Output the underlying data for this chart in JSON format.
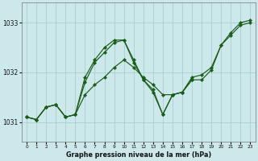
{
  "title": "Graphe pression niveau de la mer (hPa)",
  "bg_color": "#cce8ea",
  "grid_color": "#aacfcf",
  "line_color": "#1a5c1a",
  "ylim": [
    1030.6,
    1033.4
  ],
  "yticks": [
    1031,
    1032,
    1033
  ],
  "xlim": [
    -0.5,
    23.5
  ],
  "xticks": [
    0,
    1,
    2,
    3,
    4,
    5,
    6,
    7,
    8,
    9,
    10,
    11,
    12,
    13,
    14,
    15,
    16,
    17,
    18,
    19,
    20,
    21,
    22,
    23
  ],
  "series": [
    {
      "x": [
        0,
        1,
        2,
        3,
        4,
        5,
        6,
        7,
        8,
        9,
        10,
        11,
        12,
        13,
        14,
        15,
        16,
        17,
        18,
        19,
        20,
        21,
        22,
        23
      ],
      "y": [
        1031.1,
        1031.05,
        1031.3,
        1031.35,
        1031.1,
        1031.15,
        1031.55,
        1031.75,
        1031.9,
        1032.1,
        1032.25,
        1032.1,
        1031.9,
        1031.75,
        1031.55,
        1031.55,
        1031.6,
        1031.9,
        1031.95,
        1032.1,
        1032.55,
        1032.75,
        1032.95,
        1033.0
      ]
    },
    {
      "x": [
        0,
        1,
        2,
        3,
        4,
        5,
        6,
        7,
        8,
        9,
        10,
        11,
        12,
        13,
        14,
        15,
        16,
        17
      ],
      "y": [
        1031.1,
        1031.05,
        1031.3,
        1031.35,
        1031.1,
        1031.15,
        1031.8,
        1032.2,
        1032.4,
        1032.6,
        1032.65,
        1032.25,
        1031.85,
        1031.65,
        1031.15,
        1031.55,
        1031.6,
        1031.85
      ]
    },
    {
      "x": [
        0,
        1,
        2,
        3,
        4,
        5,
        6,
        7,
        8,
        9,
        10,
        11,
        12,
        13,
        14,
        15,
        16,
        17,
        18,
        19,
        20,
        21,
        22,
        23
      ],
      "y": [
        1031.1,
        1031.05,
        1031.3,
        1031.35,
        1031.1,
        1031.15,
        1031.9,
        1032.25,
        1032.5,
        1032.65,
        1032.65,
        1032.2,
        1031.85,
        1031.6,
        1031.15,
        1031.55,
        1031.6,
        1031.85,
        1031.85,
        1032.05,
        1032.55,
        1032.8,
        1033.0,
        1033.05
      ]
    }
  ],
  "figsize": [
    3.2,
    2.0
  ],
  "dpi": 100
}
